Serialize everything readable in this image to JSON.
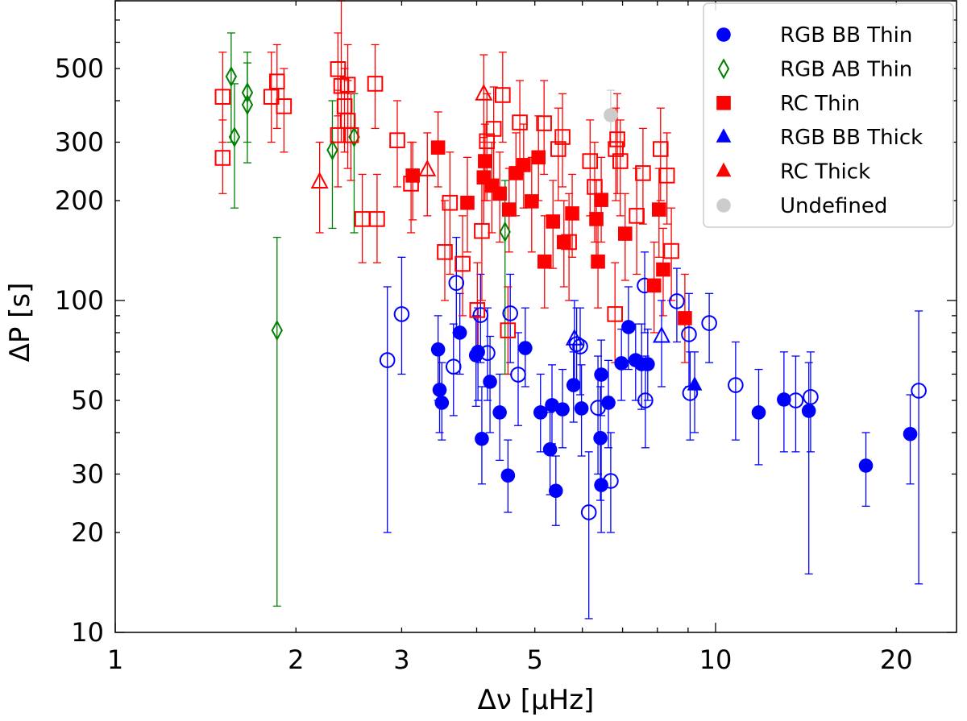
{
  "chart_data": {
    "type": "scatter",
    "xlabel": "Δν [μHz]",
    "ylabel": "ΔP [s]",
    "xscale": "log",
    "yscale": "log",
    "xlim": [
      1,
      25.2
    ],
    "ylim": [
      10,
      800
    ],
    "xticks": [
      1,
      2,
      3,
      5,
      10,
      20
    ],
    "yticks": [
      10,
      20,
      30,
      50,
      100,
      200,
      300,
      500
    ],
    "grid": false,
    "legend_position": "top-right",
    "colors": {
      "blue": "#0000ff",
      "green": "#008000",
      "red": "#ff0000",
      "grey": "#cccccc"
    },
    "series": [
      {
        "name": "RGB BB Thin",
        "marker": "circle",
        "color": "#0000ff",
        "filled": true,
        "points": [
          [
            3.45,
            71.2,
            50,
            90
          ],
          [
            3.47,
            53.8,
            40,
            70
          ],
          [
            3.5,
            49.2,
            38,
            65
          ],
          [
            3.75,
            80,
            60,
            105
          ],
          [
            3.99,
            68.4,
            48,
            90
          ],
          [
            4.08,
            38.3,
            28,
            55
          ],
          [
            4.02,
            70,
            50,
            95
          ],
          [
            4.21,
            56.9,
            40,
            78
          ],
          [
            4.37,
            46,
            33,
            60
          ],
          [
            4.51,
            29.7,
            23,
            38
          ],
          [
            4.82,
            71.9,
            55,
            95
          ],
          [
            5.11,
            46,
            35,
            60
          ],
          [
            5.3,
            35.6,
            26,
            46
          ],
          [
            5.34,
            48.4,
            37,
            64
          ],
          [
            5.42,
            26.7,
            21,
            34
          ],
          [
            5.56,
            47,
            36,
            62
          ],
          [
            5.8,
            55.6,
            43,
            70
          ],
          [
            5.98,
            47.3,
            34,
            64
          ],
          [
            6.43,
            38.5,
            25,
            55
          ],
          [
            6.45,
            59.8,
            45,
            76
          ],
          [
            6.45,
            27.8,
            20,
            38
          ],
          [
            6.63,
            49.2,
            36,
            66
          ],
          [
            6.97,
            64.7,
            50,
            82
          ],
          [
            7.16,
            83.2,
            62,
            110
          ],
          [
            7.36,
            66.1,
            50,
            85
          ],
          [
            7.53,
            64.3,
            47,
            85
          ],
          [
            7.71,
            64.3,
            50,
            82
          ],
          [
            11.8,
            46,
            32,
            62
          ],
          [
            13.0,
            50.3,
            35,
            70
          ],
          [
            14.3,
            46.5,
            15,
            65
          ],
          [
            17.8,
            31.8,
            24,
            40
          ],
          [
            21.1,
            39.6,
            28,
            52
          ]
        ]
      },
      {
        "name": "",
        "marker": "circle",
        "color": "#0000ff",
        "filled": false,
        "points": [
          [
            2.84,
            66.1,
            20,
            110
          ],
          [
            3.0,
            91,
            60,
            135
          ],
          [
            3.7,
            113,
            80,
            155
          ],
          [
            3.66,
            63.2,
            45,
            85
          ],
          [
            4.06,
            90.4,
            65,
            120
          ],
          [
            4.17,
            69.5,
            50,
            95
          ],
          [
            4.55,
            91.5,
            65,
            120
          ],
          [
            4.69,
            59.8,
            42,
            80
          ],
          [
            5.87,
            73.9,
            55,
            95
          ],
          [
            5.95,
            72.7,
            52,
            95
          ],
          [
            6.15,
            23,
            11,
            35
          ],
          [
            6.37,
            47.5,
            30,
            68
          ],
          [
            6.69,
            28.6,
            20,
            40
          ],
          [
            7.62,
            111,
            80,
            140
          ],
          [
            7.64,
            50,
            36,
            68
          ],
          [
            8.62,
            99.5,
            75,
            125
          ],
          [
            9.03,
            79.1,
            55,
            105
          ],
          [
            9.07,
            52.6,
            38,
            70
          ],
          [
            9.76,
            85.5,
            65,
            105
          ],
          [
            10.8,
            55.6,
            38,
            75
          ],
          [
            13.6,
            50,
            35,
            68
          ],
          [
            14.4,
            51.2,
            35,
            70
          ],
          [
            21.8,
            53.5,
            14,
            93
          ]
        ]
      },
      {
        "name": "RGB AB Thin",
        "marker": "diamond",
        "color": "#008000",
        "filled": false,
        "points": [
          [
            1.56,
            473,
            300,
            640
          ],
          [
            1.58,
            311,
            190,
            450
          ],
          [
            1.66,
            423,
            300,
            560
          ],
          [
            1.66,
            389,
            260,
            520
          ],
          [
            1.86,
            81.3,
            12,
            155
          ],
          [
            2.3,
            284,
            165,
            400
          ],
          [
            2.5,
            311,
            160,
            420
          ],
          [
            4.46,
            161,
            60,
            230
          ]
        ]
      },
      {
        "name": "RC Thin",
        "marker": "square",
        "color": "#ff0000",
        "filled": true,
        "points": [
          [
            3.45,
            289,
            220,
            370
          ],
          [
            3.13,
            238,
            175,
            300
          ],
          [
            4.13,
            263,
            200,
            340
          ],
          [
            4.53,
            188,
            140,
            250
          ],
          [
            3.86,
            197,
            140,
            270
          ],
          [
            4.11,
            235,
            170,
            310
          ],
          [
            4.37,
            210,
            150,
            280
          ],
          [
            4.65,
            242,
            180,
            320
          ],
          [
            4.94,
            199,
            140,
            270
          ],
          [
            5.19,
            131,
            95,
            180
          ],
          [
            5.36,
            173,
            125,
            230
          ],
          [
            5.59,
            150,
            110,
            200
          ],
          [
            5.77,
            183,
            135,
            240
          ],
          [
            6.33,
            176,
            130,
            230
          ],
          [
            6.37,
            131,
            95,
            175
          ],
          [
            6.45,
            201,
            150,
            270
          ],
          [
            7.07,
            159,
            115,
            210
          ],
          [
            8.05,
            188,
            135,
            250
          ],
          [
            8.18,
            124,
            90,
            165
          ],
          [
            8.89,
            88.5,
            65,
            120
          ],
          [
            7.9,
            111,
            80,
            150
          ],
          [
            5.07,
            270,
            200,
            360
          ],
          [
            4.79,
            256,
            190,
            340
          ],
          [
            4.24,
            222,
            160,
            300
          ]
        ]
      },
      {
        "name": "",
        "marker": "square",
        "color": "#ff0000",
        "filled": false,
        "points": [
          [
            1.51,
            411,
            300,
            560
          ],
          [
            1.51,
            269,
            210,
            350
          ],
          [
            1.82,
            411,
            300,
            560
          ],
          [
            1.86,
            457,
            330,
            590
          ],
          [
            1.91,
            385,
            280,
            500
          ],
          [
            2.35,
            498,
            360,
            640
          ],
          [
            2.38,
            443,
            300,
            800
          ],
          [
            2.44,
            447,
            330,
            590
          ],
          [
            2.41,
            385,
            280,
            500
          ],
          [
            2.44,
            348,
            250,
            460
          ],
          [
            2.35,
            315,
            220,
            430
          ],
          [
            2.47,
            315,
            230,
            420
          ],
          [
            2.58,
            176,
            130,
            240
          ],
          [
            2.73,
            176,
            130,
            240
          ],
          [
            2.71,
            450,
            330,
            590
          ],
          [
            2.95,
            304,
            220,
            400
          ],
          [
            3.11,
            225,
            160,
            300
          ],
          [
            3.54,
            140,
            100,
            200
          ],
          [
            3.61,
            197,
            120,
            280
          ],
          [
            3.79,
            129,
            90,
            180
          ],
          [
            4.01,
            93.6,
            70,
            130
          ],
          [
            4.08,
            162,
            100,
            230
          ],
          [
            4.16,
            302,
            200,
            420
          ],
          [
            4.27,
            329,
            230,
            440
          ],
          [
            4.51,
            81.3,
            60,
            110
          ],
          [
            4.72,
            344,
            240,
            460
          ],
          [
            5.18,
            342,
            240,
            460
          ],
          [
            5.47,
            286,
            200,
            380
          ],
          [
            5.56,
            311,
            220,
            420
          ],
          [
            5.7,
            150,
            100,
            210
          ],
          [
            6.18,
            263,
            180,
            350
          ],
          [
            6.29,
            220,
            150,
            300
          ],
          [
            6.82,
            286,
            200,
            380
          ],
          [
            6.86,
            306,
            210,
            420
          ],
          [
            6.8,
            91,
            65,
            130
          ],
          [
            6.94,
            263,
            180,
            350
          ],
          [
            7.57,
            242,
            170,
            330
          ],
          [
            7.39,
            180,
            120,
            250
          ],
          [
            8.1,
            286,
            200,
            380
          ],
          [
            8.3,
            238,
            170,
            320
          ],
          [
            8.44,
            141,
            100,
            190
          ],
          [
            4.42,
            416,
            300,
            560
          ]
        ]
      },
      {
        "name": "RGB BB Thick",
        "marker": "triangle",
        "color": "#0000ff",
        "filled": true,
        "points": [
          [
            9.23,
            55.6,
            40,
            70
          ]
        ]
      },
      {
        "name": "",
        "marker": "triangle",
        "color": "#0000ff",
        "filled": false,
        "points": [
          [
            5.82,
            76.4,
            55,
            100
          ],
          [
            8.13,
            77.8,
            55,
            100
          ]
        ]
      },
      {
        "name": "RC Thick",
        "marker": "triangle",
        "color": "#ff0000",
        "filled": true,
        "points": []
      },
      {
        "name": "",
        "marker": "triangle",
        "color": "#ff0000",
        "filled": false,
        "points": [
          [
            2.19,
            227,
            160,
            300
          ],
          [
            3.31,
            247,
            180,
            320
          ],
          [
            4.11,
            418,
            300,
            550
          ]
        ]
      },
      {
        "name": "Undefined",
        "marker": "circle",
        "color": "#cccccc",
        "filled": true,
        "points": [
          [
            6.69,
            362,
            300,
            430
          ]
        ]
      }
    ]
  }
}
